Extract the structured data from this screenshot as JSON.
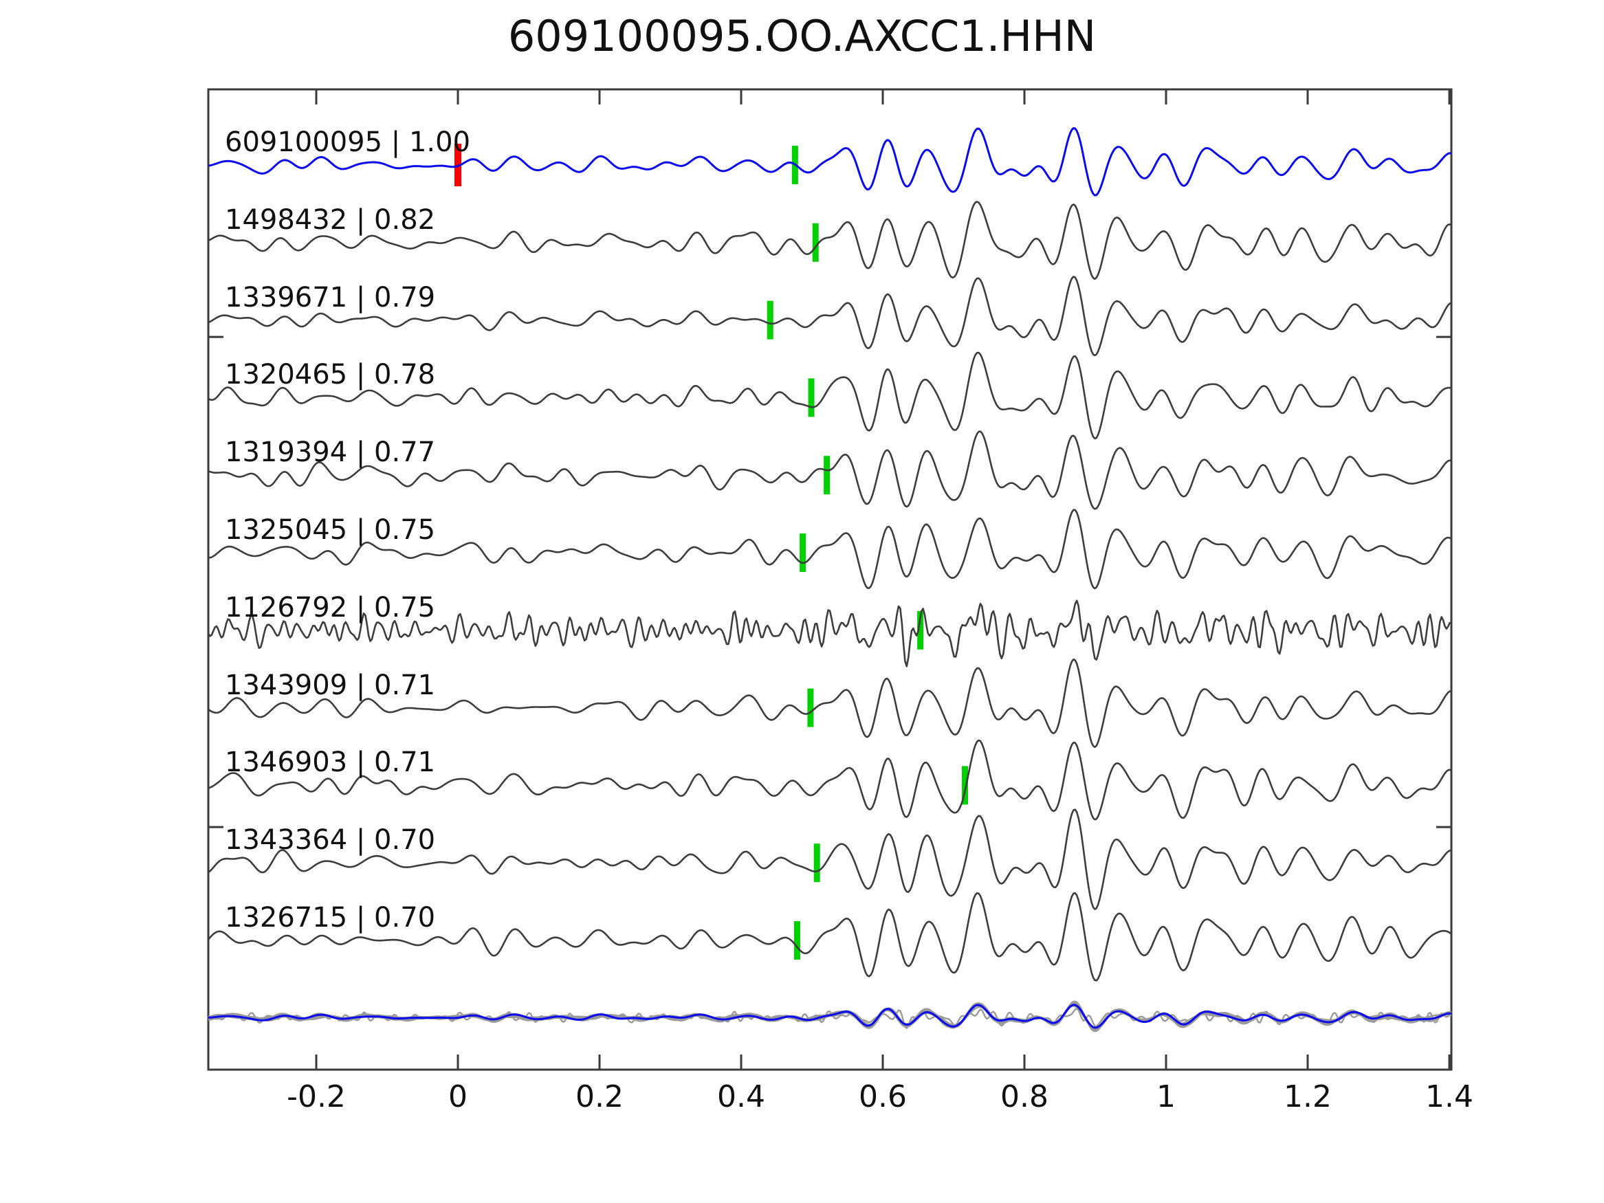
{
  "title": "609100095.OO.AXCC1.HHN",
  "colors": {
    "template_trace": "#0b0bee",
    "match_trace": "#3d3d3d",
    "noisy_trace": "#3d3d3d",
    "overlay_gray": "#9a9a9a",
    "pick_green": "#00cf00",
    "pick_red": "#ff0000",
    "axis": "#3b3b3b",
    "text": "#111111",
    "background": "#ffffff"
  },
  "chart_data": {
    "type": "line",
    "title": "609100095.OO.AXCC1.HHN",
    "xlabel": "",
    "ylabel": "",
    "xlim": [
      -0.352,
      1.403
    ],
    "grid": false,
    "legend": "none",
    "x_ticks": [
      -0.2,
      0,
      0.2,
      0.4,
      0.6,
      0.8,
      1,
      1.2,
      1.4
    ],
    "x_tick_labels": [
      "-0.2",
      "0",
      "0.2",
      "0.4",
      "0.6",
      "0.8",
      "1",
      "1.2",
      "1.4"
    ],
    "description": "Template-matching cross-correlation record section: template event 609100095 (blue, top) over 10 matched detections (dark gray), green bars mark pick/alignment times, red bar marks template origin at t=0; bottom row overlays all traces (gray) with the template (blue).",
    "traces": [
      {
        "label": "609100095 | 1.00",
        "id": "609100095",
        "score": 1.0,
        "role": "template",
        "seed": 11,
        "picks": [
          {
            "x": 0.0,
            "color": "red"
          },
          {
            "x": 0.476,
            "color": "green"
          }
        ]
      },
      {
        "label": "1498432 | 0.82",
        "id": "1498432",
        "score": 0.82,
        "role": "match",
        "seed": 22,
        "picks": [
          {
            "x": 0.505,
            "color": "green"
          }
        ]
      },
      {
        "label": "1339671 | 0.79",
        "id": "1339671",
        "score": 0.79,
        "role": "match",
        "seed": 33,
        "picks": [
          {
            "x": 0.441,
            "color": "green"
          }
        ]
      },
      {
        "label": "1320465 | 0.78",
        "id": "1320465",
        "score": 0.78,
        "role": "match",
        "seed": 44,
        "picks": [
          {
            "x": 0.499,
            "color": "green"
          }
        ]
      },
      {
        "label": "1319394 | 0.77",
        "id": "1319394",
        "score": 0.77,
        "role": "match",
        "seed": 55,
        "picks": [
          {
            "x": 0.521,
            "color": "green"
          }
        ]
      },
      {
        "label": "1325045 | 0.75",
        "id": "1325045",
        "score": 0.75,
        "role": "match",
        "seed": 66,
        "picks": [
          {
            "x": 0.487,
            "color": "green"
          }
        ]
      },
      {
        "label": "1126792 | 0.75",
        "id": "1126792",
        "score": 0.75,
        "role": "noisy",
        "seed": 77,
        "picks": [
          {
            "x": 0.653,
            "color": "green"
          }
        ]
      },
      {
        "label": "1343909 | 0.71",
        "id": "1343909",
        "score": 0.71,
        "role": "match",
        "seed": 88,
        "picks": [
          {
            "x": 0.498,
            "color": "green"
          }
        ]
      },
      {
        "label": "1346903 | 0.71",
        "id": "1346903",
        "score": 0.71,
        "role": "match",
        "seed": 99,
        "picks": [
          {
            "x": 0.716,
            "color": "green"
          }
        ]
      },
      {
        "label": "1343364 | 0.70",
        "id": "1343364",
        "score": 0.7,
        "role": "match",
        "seed": 111,
        "picks": [
          {
            "x": 0.507,
            "color": "green"
          }
        ]
      },
      {
        "label": "1326715 | 0.70",
        "id": "1326715",
        "score": 0.7,
        "role": "match",
        "seed": 122,
        "picks": [
          {
            "x": 0.479,
            "color": "green"
          }
        ]
      }
    ],
    "overlay_row": {
      "present": true,
      "content": "all 11 traces overlaid, template in blue on top"
    }
  }
}
